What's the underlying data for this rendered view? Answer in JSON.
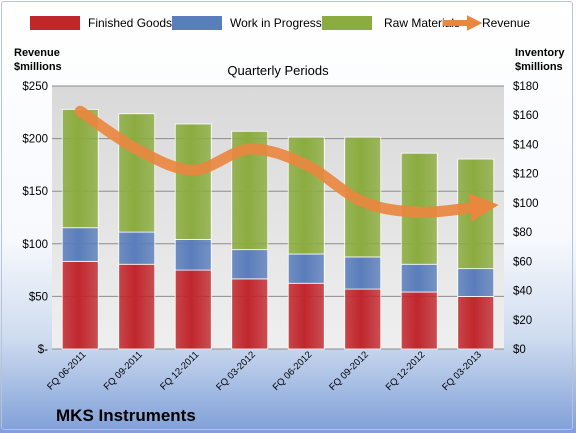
{
  "chart_data": {
    "type": "bar",
    "stacked": true,
    "subtitle": "Quarterly Periods",
    "company": "MKS Instruments",
    "left_axis": {
      "title_line1": "Revenue",
      "title_line2": "$millions",
      "range": [
        0,
        250
      ],
      "ticks": [
        "$-",
        "$50",
        "$100",
        "$150",
        "$200",
        "$250"
      ],
      "tick_values": [
        0,
        50,
        100,
        150,
        200,
        250
      ]
    },
    "right_axis": {
      "title_line1": "Inventory",
      "title_line2": "$millions",
      "range": [
        0,
        180
      ],
      "ticks": [
        "$0",
        "$20",
        "$40",
        "$60",
        "$80",
        "$100",
        "$120",
        "$140",
        "$160",
        "$180"
      ],
      "tick_values": [
        0,
        20,
        40,
        60,
        80,
        100,
        120,
        140,
        160,
        180
      ]
    },
    "grid": true,
    "legend_position": "top",
    "categories": [
      "FQ 06-2011",
      "FQ 09-2011",
      "FQ 12-2011",
      "FQ 03-2012",
      "FQ 06-2012",
      "FQ 09-2012",
      "FQ 12-2012",
      "FQ 03-2013"
    ],
    "series": [
      {
        "name": "Finished Goods",
        "axis": "right",
        "color": "#c0272d",
        "values": [
          60,
          58,
          54,
          48,
          45,
          41,
          39,
          36
        ]
      },
      {
        "name": "Work in Progress",
        "axis": "right",
        "color": "#5a7dbb",
        "values": [
          23,
          22,
          21,
          20,
          20,
          22,
          19,
          19
        ]
      },
      {
        "name": "Raw Materials",
        "axis": "right",
        "color": "#8bac3f",
        "values": [
          81,
          81,
          79,
          81,
          80,
          82,
          76,
          75
        ]
      },
      {
        "name": "Revenue",
        "axis": "left",
        "type": "line",
        "color": "#e9873f",
        "values": [
          226,
          190,
          170,
          190,
          175,
          140,
          130,
          135
        ]
      }
    ]
  }
}
